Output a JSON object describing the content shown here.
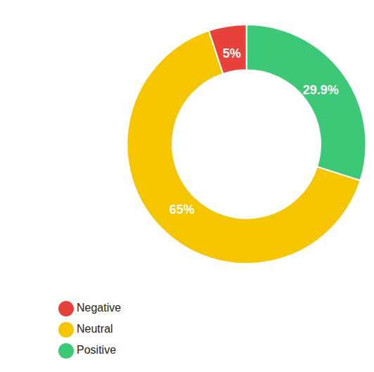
{
  "chart_data": {
    "type": "pie",
    "categories": [
      "Neutral",
      "Positive",
      "Negative"
    ],
    "values": [
      65.0,
      29.9,
      5.1
    ],
    "value_labels": [
      "65%",
      "29.9%",
      "5%"
    ],
    "colors": [
      "#F5C500",
      "#3DC878",
      "#E8413C"
    ],
    "data_labels": true,
    "legend": "bottom"
  }
}
